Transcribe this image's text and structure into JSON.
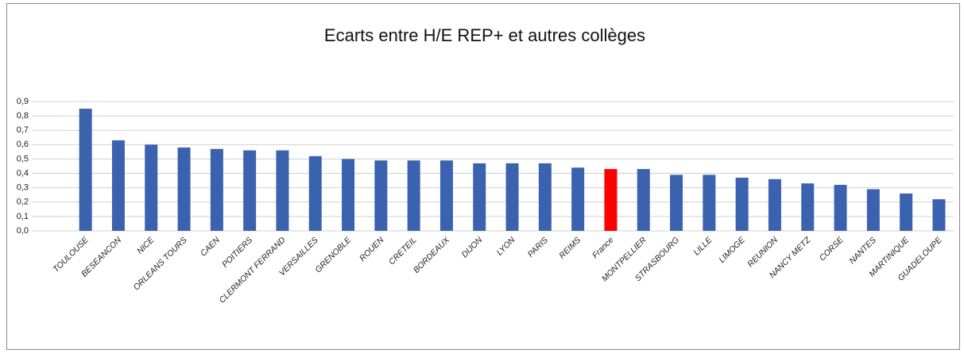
{
  "chart_data": {
    "type": "bar",
    "title": "Ecarts entre H/E REP+ et autres collèges",
    "categories": [
      "TOULOUSE",
      "BESEANCON",
      "NICE",
      "ORLEANS TOURS",
      "CAEN",
      "POITIERS",
      "CLERMONT FERRAND",
      "VERSAILLES",
      "GRENOBLE",
      "ROUEN",
      "CRETEIL",
      "BORDEAUX",
      "DIJON",
      "LYON",
      "PARIS",
      "REIMS",
      "France",
      "MONTPELLIER",
      "STRASBOURG",
      "LILLE",
      "LIMOGE",
      "REUNION",
      "NANCY METZ",
      "CORSE",
      "NANTES",
      "MARTINIQUE",
      "GUADELOUPE"
    ],
    "values": [
      0.85,
      0.63,
      0.6,
      0.58,
      0.57,
      0.56,
      0.56,
      0.52,
      0.5,
      0.49,
      0.49,
      0.49,
      0.47,
      0.47,
      0.47,
      0.44,
      0.43,
      0.43,
      0.39,
      0.39,
      0.37,
      0.36,
      0.33,
      0.32,
      0.29,
      0.26,
      0.22
    ],
    "colors": [
      "#3a62ae",
      "#3a62ae",
      "#3a62ae",
      "#3a62ae",
      "#3a62ae",
      "#3a62ae",
      "#3a62ae",
      "#3a62ae",
      "#3a62ae",
      "#3a62ae",
      "#3a62ae",
      "#3a62ae",
      "#3a62ae",
      "#3a62ae",
      "#3a62ae",
      "#3a62ae",
      "#ff0000",
      "#3a62ae",
      "#3a62ae",
      "#3a62ae",
      "#3a62ae",
      "#3a62ae",
      "#3a62ae",
      "#3a62ae",
      "#3a62ae",
      "#3a62ae",
      "#3a62ae"
    ],
    "ylim": [
      0,
      0.9
    ],
    "yticks": [
      {
        "value": 0,
        "label": "0,0"
      },
      {
        "value": 0.1,
        "label": "0,1"
      },
      {
        "value": 0.2,
        "label": "0,2"
      },
      {
        "value": 0.3,
        "label": "0,3"
      },
      {
        "value": 0.4,
        "label": "0,4"
      },
      {
        "value": 0.5,
        "label": "0,5"
      },
      {
        "value": 0.6,
        "label": "0,6"
      },
      {
        "value": 0.7,
        "label": "0,7"
      },
      {
        "value": 0.8,
        "label": "0,8"
      },
      {
        "value": 0.9,
        "label": "0,9"
      }
    ],
    "grid": true
  }
}
